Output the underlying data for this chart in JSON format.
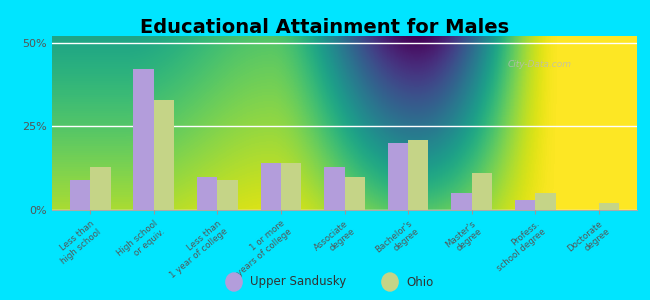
{
  "title": "Educational Attainment for Males",
  "categories": [
    "Less than\nhigh school",
    "High school\nor equiv.",
    "Less than\n1 year of college",
    "1 or more\nyears of college",
    "Associate\ndegree",
    "Bachelor's\ndegree",
    "Master's\ndegree",
    "Profess.\nschool degree",
    "Doctorate\ndegree"
  ],
  "upper_sandusky": [
    9,
    42,
    10,
    14,
    13,
    20,
    5,
    3,
    0
  ],
  "ohio": [
    13,
    33,
    9,
    14,
    10,
    21,
    11,
    5,
    2
  ],
  "color_upper_sandusky": "#b39ddb",
  "color_ohio": "#c5d487",
  "background_fig": "#00e5ff",
  "yticks": [
    0,
    25,
    50
  ],
  "ylim": [
    0,
    52
  ],
  "bar_width": 0.32,
  "title_fontsize": 14,
  "legend_label_upper": "Upper Sandusky",
  "legend_label_ohio": "Ohio",
  "watermark": "City-Data.com"
}
